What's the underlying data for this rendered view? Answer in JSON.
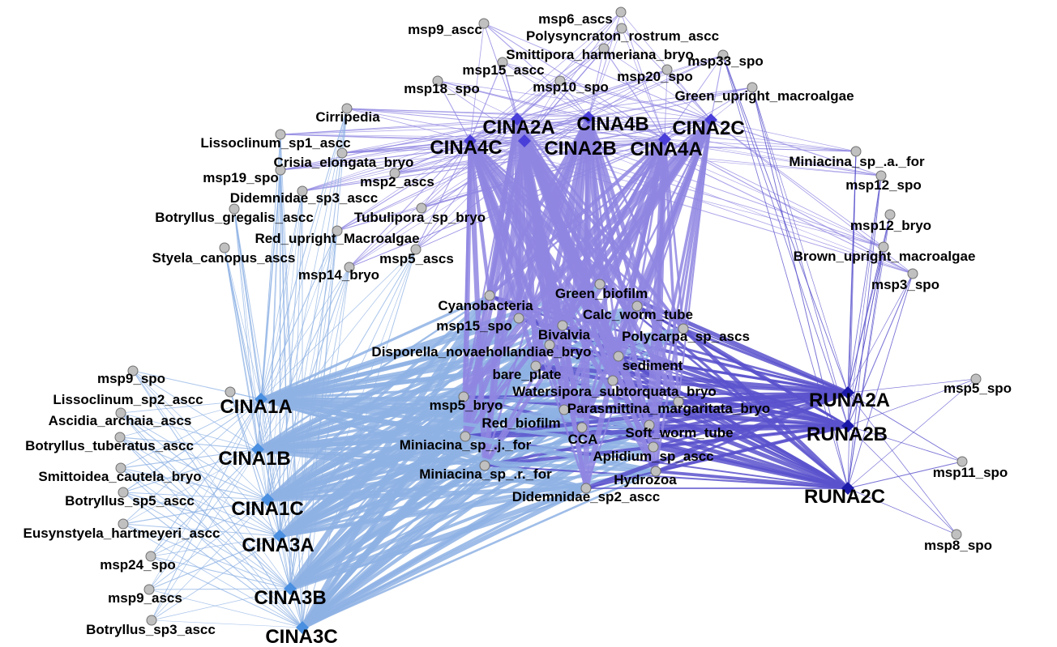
{
  "colors": {
    "species_node": "#c0c0c0",
    "cina_site_node": "#4a8fe0",
    "cina_upper_node": "#4a3fd8",
    "runa_site_node": "#1b1aa8",
    "edge_lower": "#8eb2e4",
    "edge_upper": "#8f86e2",
    "edge_runa": "#5a52cc"
  },
  "sites": [
    {
      "id": "CINA2A",
      "label": "CINA2A",
      "group": "upper"
    },
    {
      "id": "CINA4B",
      "label": "CINA4B",
      "group": "upper"
    },
    {
      "id": "CINA2C",
      "label": "CINA2C",
      "group": "upper"
    },
    {
      "id": "CINA4C",
      "label": "CINA4C",
      "group": "upper"
    },
    {
      "id": "CINA2B",
      "label": "CINA2B",
      "group": "upper"
    },
    {
      "id": "CINA4A",
      "label": "CINA4A",
      "group": "upper"
    },
    {
      "id": "CINA1A",
      "label": "CINA1A",
      "group": "lower"
    },
    {
      "id": "CINA1B",
      "label": "CINA1B",
      "group": "lower"
    },
    {
      "id": "CINA1C",
      "label": "CINA1C",
      "group": "lower"
    },
    {
      "id": "CINA3A",
      "label": "CINA3A",
      "group": "lower"
    },
    {
      "id": "CINA3B",
      "label": "CINA3B",
      "group": "lower"
    },
    {
      "id": "CINA3C",
      "label": "CINA3C",
      "group": "lower"
    },
    {
      "id": "RUNA2A",
      "label": "RUNA2A",
      "group": "runa"
    },
    {
      "id": "RUNA2B",
      "label": "RUNA2B",
      "group": "runa"
    },
    {
      "id": "RUNA2C",
      "label": "RUNA2C",
      "group": "runa"
    }
  ],
  "species": [
    {
      "id": "msp6_ascs",
      "label": "msp6_ascs"
    },
    {
      "id": "msp9_ascc_top",
      "label": "msp9_ascc"
    },
    {
      "id": "Polysyncraton_rostrum_ascc",
      "label": "Polysyncraton_rostrum_ascc"
    },
    {
      "id": "Smittipora_harmeriana_bryo",
      "label": "Smittipora_harmeriana_bryo"
    },
    {
      "id": "msp33_spo",
      "label": "msp33_spo"
    },
    {
      "id": "msp15_ascc",
      "label": "msp15_ascc"
    },
    {
      "id": "msp20_spo",
      "label": "msp20_spo"
    },
    {
      "id": "msp18_spo",
      "label": "msp18_spo"
    },
    {
      "id": "msp10_spo",
      "label": "msp10_spo"
    },
    {
      "id": "Green_upright_macroalgae",
      "label": "Green_upright_macroalgae"
    },
    {
      "id": "Cirripedia",
      "label": "Cirripedia"
    },
    {
      "id": "Lissoclinum_sp1_ascc",
      "label": "Lissoclinum_sp1_ascc"
    },
    {
      "id": "Crisia_elongata_bryo",
      "label": "Crisia_elongata_bryo"
    },
    {
      "id": "msp19_spo",
      "label": "msp19_spo"
    },
    {
      "id": "msp2_ascs",
      "label": "msp2_ascs"
    },
    {
      "id": "Didemnidae_sp3_ascc",
      "label": "Didemnidae_sp3_ascc"
    },
    {
      "id": "Botryllus_gregalis_ascc",
      "label": "Botryllus_gregalis_ascc"
    },
    {
      "id": "Tubulipora_sp_bryo",
      "label": "Tubulipora_sp_bryo"
    },
    {
      "id": "Red_upright_Macroalgae",
      "label": "Red_upright_Macroalgae"
    },
    {
      "id": "Styela_canopus_ascs",
      "label": "Styela_canopus_ascs"
    },
    {
      "id": "msp5_ascs",
      "label": "msp5_ascs"
    },
    {
      "id": "msp14_bryo",
      "label": "msp14_bryo"
    },
    {
      "id": "Miniacina_sp_a_for",
      "label": "Miniacina_sp_.a._for"
    },
    {
      "id": "msp12_spo",
      "label": "msp12_spo"
    },
    {
      "id": "msp12_bryo",
      "label": "msp12_bryo"
    },
    {
      "id": "Brown_upright_macroalgae",
      "label": "Brown_upright_macroalgae"
    },
    {
      "id": "msp3_spo",
      "label": "msp3_spo"
    },
    {
      "id": "Green_biofilm",
      "label": "Green_biofilm"
    },
    {
      "id": "Cyanobacteria",
      "label": "Cyanobacteria"
    },
    {
      "id": "Calc_worm_tube",
      "label": "Calc_worm_tube"
    },
    {
      "id": "msp15_spo",
      "label": "msp15_spo"
    },
    {
      "id": "Bivalvia",
      "label": "Bivalvia"
    },
    {
      "id": "Polycarpa_sp_ascs",
      "label": "Polycarpa_sp_ascs"
    },
    {
      "id": "Disporella_novaehollandiae_bryo",
      "label": "Disporella_novaehollandiae_bryo"
    },
    {
      "id": "sediment",
      "label": "sediment"
    },
    {
      "id": "bare_plate",
      "label": "bare_plate"
    },
    {
      "id": "Watersipora_subtorquata_bryo",
      "label": "Watersipora_subtorquata_bryo"
    },
    {
      "id": "msp5_bryo",
      "label": "msp5_bryo"
    },
    {
      "id": "Parasmittina_margaritata_bryo",
      "label": "Parasmittina_margaritata_bryo"
    },
    {
      "id": "Red_biofilm",
      "label": "Red_biofilm"
    },
    {
      "id": "CCA",
      "label": "CCA"
    },
    {
      "id": "Soft_worm_tube",
      "label": "Soft_worm_tube"
    },
    {
      "id": "Miniacina_sp_j_for",
      "label": "Miniacina_sp_.j._for"
    },
    {
      "id": "Aplidium_sp_ascc",
      "label": "Aplidium_sp_ascc"
    },
    {
      "id": "Miniacina_sp_r_for",
      "label": "Miniacina_sp_.r._for"
    },
    {
      "id": "Hydrozoa",
      "label": "Hydrozoa"
    },
    {
      "id": "Didemnidae_sp2_ascc",
      "label": "Didemnidae_sp2_ascc"
    },
    {
      "id": "msp9_spo",
      "label": "msp9_spo"
    },
    {
      "id": "Lissoclinum_sp2_ascc",
      "label": "Lissoclinum_sp2_ascc"
    },
    {
      "id": "Ascidia_archaia_ascs",
      "label": "Ascidia_archaia_ascs"
    },
    {
      "id": "Botryllus_tuberatus_ascc",
      "label": "Botryllus_tuberatus_ascc"
    },
    {
      "id": "Smittoidea_cautela_bryo",
      "label": "Smittoidea_cautela_bryo"
    },
    {
      "id": "Botryllus_sp5_ascc",
      "label": "Botryllus_sp5_ascc"
    },
    {
      "id": "Eusynstyela_hartmeyeri_ascc",
      "label": "Eusynstyela_hartmeyeri_ascc"
    },
    {
      "id": "msp24_spo",
      "label": "msp24_spo"
    },
    {
      "id": "msp9_ascs",
      "label": "msp9_ascs"
    },
    {
      "id": "Botryllus_sp3_ascc",
      "label": "Botryllus_sp3_ascc"
    },
    {
      "id": "msp5_spo",
      "label": "msp5_spo"
    },
    {
      "id": "msp11_spo",
      "label": "msp11_spo"
    },
    {
      "id": "msp8_spo",
      "label": "msp8_spo"
    }
  ]
}
